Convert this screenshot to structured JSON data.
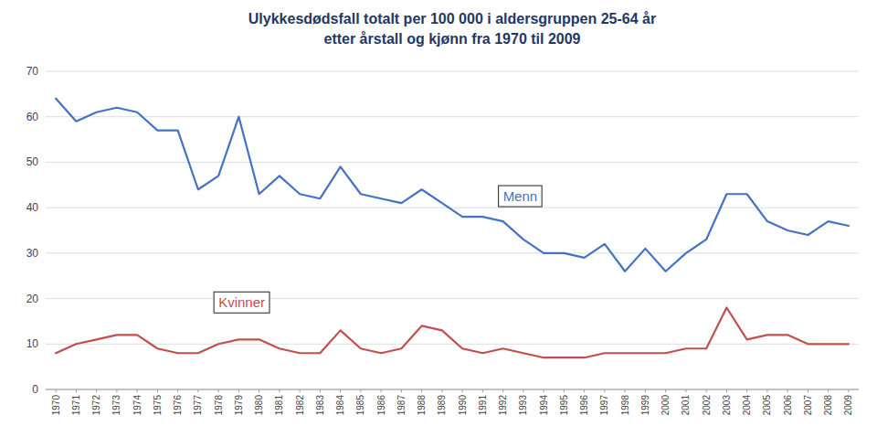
{
  "chart_data": {
    "type": "line",
    "title": "Ulykkesdødsfall totalt per 100 000 i aldersgruppen 25-64 år\netter årstall og kjønn fra 1970 til 2009",
    "x": [
      1970,
      1971,
      1972,
      1973,
      1974,
      1975,
      1976,
      1977,
      1978,
      1979,
      1980,
      1981,
      1982,
      1983,
      1984,
      1985,
      1986,
      1987,
      1988,
      1989,
      1990,
      1991,
      1992,
      1993,
      1994,
      1995,
      1996,
      1997,
      1998,
      1999,
      2000,
      2001,
      2002,
      2003,
      2004,
      2005,
      2006,
      2007,
      2008,
      2009
    ],
    "series": [
      {
        "name": "Menn",
        "color": "#4472C4",
        "values": [
          64,
          59,
          61,
          62,
          61,
          57,
          57,
          44,
          47,
          60,
          43,
          47,
          43,
          42,
          49,
          43,
          42,
          41,
          44,
          41,
          38,
          38,
          37,
          33,
          30,
          30,
          29,
          32,
          26,
          31,
          26,
          30,
          33,
          43,
          43,
          37,
          35,
          34,
          37,
          36
        ]
      },
      {
        "name": "Kvinner",
        "color": "#C0504D",
        "values": [
          8,
          10,
          11,
          12,
          12,
          9,
          8,
          8,
          10,
          11,
          11,
          9,
          8,
          8,
          13,
          9,
          8,
          9,
          14,
          13,
          9,
          8,
          9,
          8,
          7,
          7,
          7,
          8,
          8,
          8,
          8,
          9,
          9,
          18,
          11,
          12,
          12,
          10,
          10,
          10
        ]
      }
    ],
    "xlim": [
      1969.5,
      2009.5
    ],
    "xticks": [
      1970,
      1971,
      1972,
      1973,
      1974,
      1975,
      1976,
      1977,
      1978,
      1979,
      1980,
      1981,
      1982,
      1983,
      1984,
      1985,
      1986,
      1987,
      1988,
      1989,
      1990,
      1991,
      1992,
      1993,
      1994,
      1995,
      1996,
      1997,
      1998,
      1999,
      2000,
      2001,
      2002,
      2003,
      2004,
      2005,
      2006,
      2007,
      2008,
      2009
    ],
    "ylim": [
      0,
      70
    ],
    "yticks": [
      0,
      10,
      20,
      30,
      40,
      50,
      60,
      70
    ],
    "grid": true
  }
}
